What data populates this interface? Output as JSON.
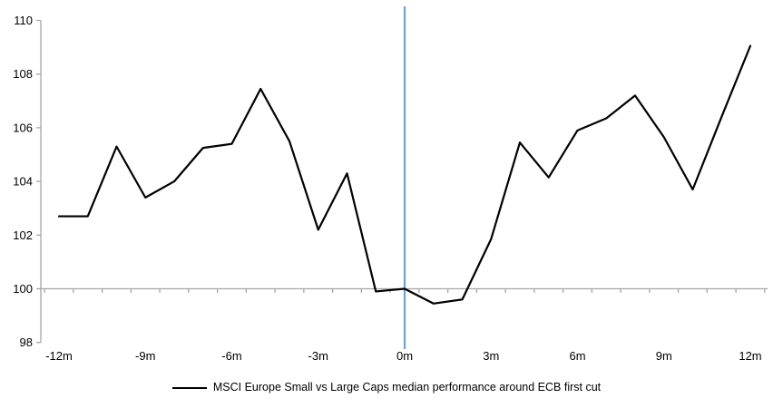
{
  "chart_data": {
    "type": "line",
    "title": "",
    "x": [
      -12,
      -11,
      -10,
      -9,
      -8,
      -7,
      -6,
      -5,
      -4,
      -3,
      -2,
      -1,
      0,
      1,
      2,
      3,
      4,
      5,
      6,
      7,
      8,
      9,
      10,
      11,
      12
    ],
    "series": [
      {
        "name": "MSCI Europe Small vs Large Caps median performance around ECB first cut",
        "color": "#000000",
        "values": [
          102.7,
          102.7,
          105.3,
          103.4,
          104.0,
          105.25,
          105.4,
          107.45,
          105.5,
          102.2,
          104.3,
          99.9,
          100.0,
          99.45,
          99.6,
          101.85,
          105.45,
          104.15,
          105.9,
          106.35,
          107.2,
          105.65,
          103.7,
          106.4,
          109.05
        ]
      }
    ],
    "ylim": [
      98,
      110
    ],
    "y_ticks": [
      98,
      100,
      102,
      104,
      106,
      108,
      110
    ],
    "y_tick_labels": [
      "98",
      "100",
      "102",
      "104",
      "106",
      "108",
      "110"
    ],
    "x_tick_positions": [
      -12,
      -9,
      -6,
      -3,
      0,
      3,
      6,
      9,
      12
    ],
    "x_tick_labels": [
      "-12m",
      "-9m",
      "-6m",
      "-3m",
      "0m",
      "3m",
      "6m",
      "9m",
      "12m"
    ],
    "x_axis_cross": 100,
    "grid": false,
    "legend_position": "bottom",
    "event_line": {
      "x": 0,
      "color": "#70A0CC"
    }
  },
  "colors": {
    "series": "#000000",
    "axis": "#A6A6A6",
    "event_line": "#70A0CC",
    "text": "#000000",
    "background": "#FFFFFF"
  }
}
